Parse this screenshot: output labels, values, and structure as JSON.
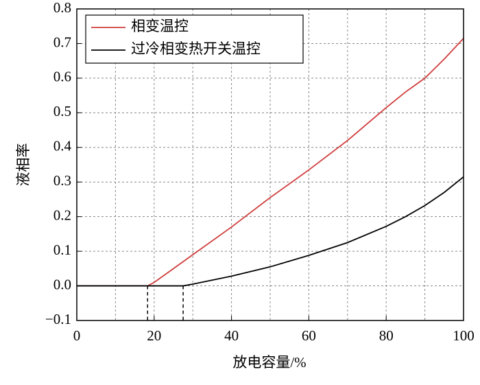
{
  "chart_data": {
    "type": "line",
    "x_label": "放电容量/%",
    "y_label": "液相率",
    "x": [
      0,
      10,
      18.3,
      20,
      25,
      27.5,
      30,
      40,
      50,
      60,
      70,
      80,
      85,
      90,
      95,
      100
    ],
    "series": [
      {
        "name": "相变温控",
        "color": "#d03c3c",
        "values": [
          0,
          0,
          0,
          0.01,
          0.05,
          0.07,
          0.09,
          0.17,
          0.255,
          0.335,
          0.42,
          0.515,
          0.56,
          0.6,
          0.655,
          0.715
        ]
      },
      {
        "name": "过冷相变热开关温控",
        "color": "#000000",
        "values": [
          0,
          0,
          0,
          0,
          0,
          0,
          0.005,
          0.028,
          0.055,
          0.088,
          0.125,
          0.172,
          0.2,
          0.232,
          0.27,
          0.315
        ]
      }
    ],
    "markers": [
      18.3,
      27.5
    ],
    "xlim": [
      0,
      100
    ],
    "xticks": [
      0,
      20,
      40,
      60,
      80,
      100
    ],
    "x_grid": [
      10,
      20,
      30,
      40,
      50,
      60,
      70,
      80,
      90
    ],
    "ylim": [
      -0.1,
      0.8
    ],
    "yticks": [
      {
        "value": -0.1,
        "label": "−0.1"
      },
      {
        "value": 0,
        "label": "0.0"
      },
      0.1,
      0.2,
      0.3,
      0.4,
      0.5,
      0.6,
      0.7,
      0.8
    ],
    "grid": true,
    "legend": "upper left"
  }
}
